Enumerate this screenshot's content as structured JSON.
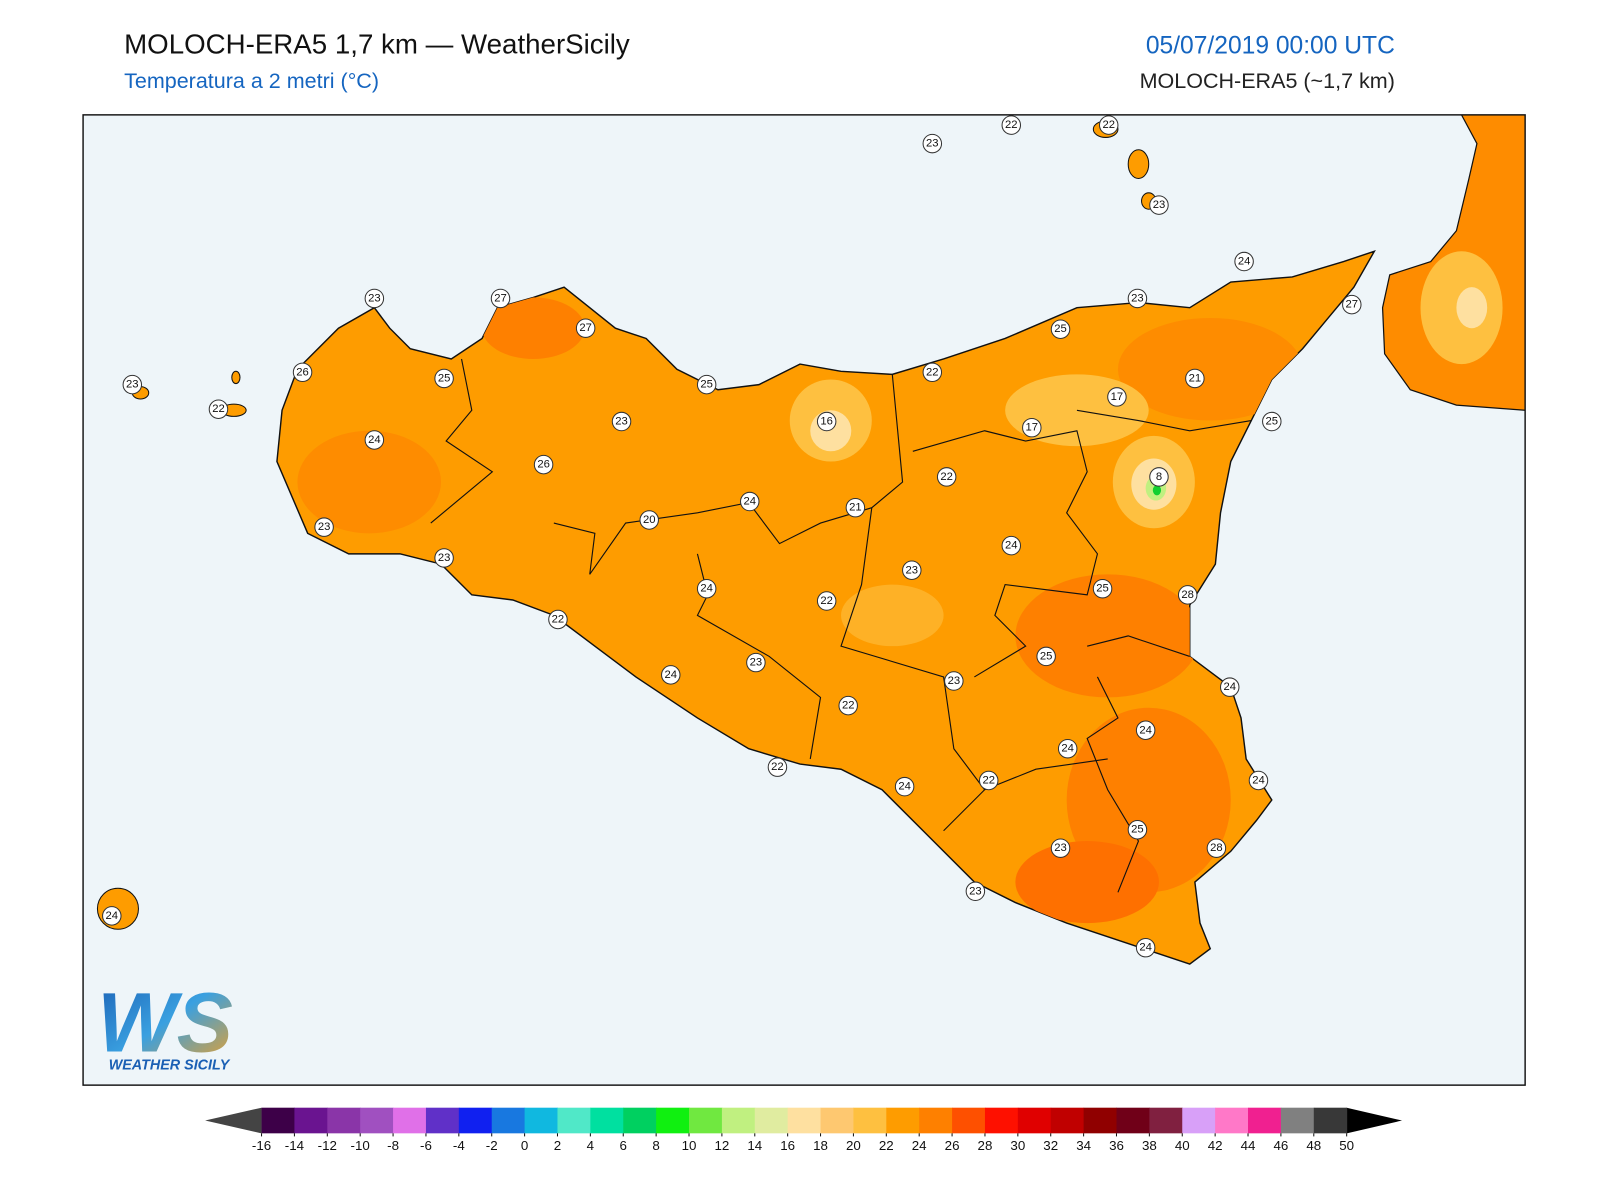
{
  "header": {
    "title": "MOLOCH-ERA5 1,7 km — WeatherSicily",
    "subtitle": "Temperatura a 2 metri (°C)",
    "datetime": "05/07/2019 00:00 UTC",
    "model": "MOLOCH-ERA5 (~1,7 km)"
  },
  "map": {
    "stations": [
      23,
      22,
      22,
      23,
      24,
      23,
      27,
      27,
      23,
      27,
      25,
      26,
      25,
      25,
      22,
      21,
      23,
      22,
      17,
      16,
      23,
      17,
      25,
      24,
      26,
      22,
      8,
      24,
      21,
      20,
      23,
      24,
      23,
      23,
      24,
      25,
      28,
      22,
      22,
      25,
      23,
      24,
      23,
      24,
      22,
      24,
      24,
      22,
      22,
      24,
      24,
      25,
      28,
      23,
      23,
      24,
      24
    ]
  },
  "colorbar": {
    "ticks": [
      -16,
      -14,
      -12,
      -10,
      -8,
      -6,
      -4,
      -2,
      0,
      2,
      4,
      6,
      8,
      10,
      12,
      14,
      16,
      18,
      20,
      22,
      24,
      26,
      28,
      30,
      32,
      34,
      36,
      38,
      40,
      42,
      44,
      46,
      48,
      50
    ],
    "colors": [
      "#3d0048",
      "#6a1490",
      "#8a35a8",
      "#a050c0",
      "#e070e8",
      "#6030c8",
      "#1020f0",
      "#1878e0",
      "#10b8e0",
      "#50e8c8",
      "#00e0a0",
      "#00d060",
      "#10f010",
      "#70e840",
      "#c0f080",
      "#e0eca0",
      "#fee0a0",
      "#fec870",
      "#fec040",
      "#fe9c00",
      "#fe8000",
      "#fe5000",
      "#fe1000",
      "#e00000",
      "#c00000",
      "#900000",
      "#700018",
      "#802040",
      "#d8a0f8",
      "#ff78c8",
      "#f02090",
      "#808080",
      "#383838"
    ],
    "under": "#444444",
    "over": "#000000"
  },
  "logo": {
    "mark": "WS",
    "name": "WEATHER SICILY"
  }
}
